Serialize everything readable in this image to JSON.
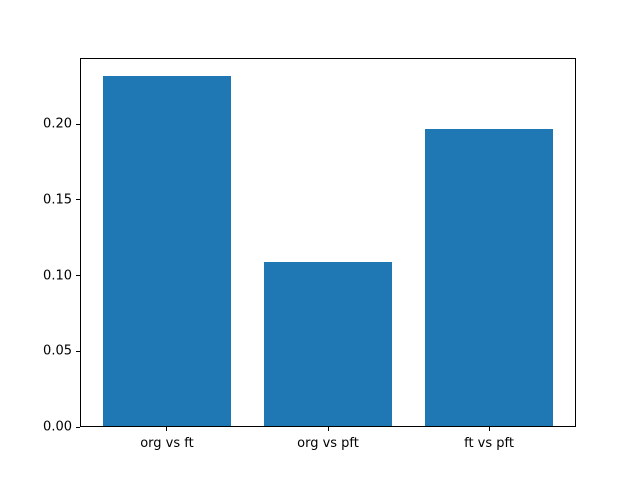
{
  "figure": {
    "background": "#ffffff",
    "spine_color": "#000000"
  },
  "chart_data": {
    "type": "bar",
    "title": "",
    "xlabel": "",
    "ylabel": "",
    "categories": [
      "org vs ft",
      "org vs pft",
      "ft vs pft"
    ],
    "values": [
      0.232,
      0.109,
      0.197
    ],
    "yticks": [
      {
        "value": 0.0,
        "label": "0.00"
      },
      {
        "value": 0.05,
        "label": "0.05"
      },
      {
        "value": 0.1,
        "label": "0.10"
      },
      {
        "value": 0.15,
        "label": "0.15"
      },
      {
        "value": 0.2,
        "label": "0.20"
      }
    ],
    "ylim": [
      0,
      0.2436
    ],
    "bar_color": "#1f77b4",
    "bar_width_fraction": 0.8,
    "x_margin": 0.05,
    "grid": false,
    "legend": false
  }
}
